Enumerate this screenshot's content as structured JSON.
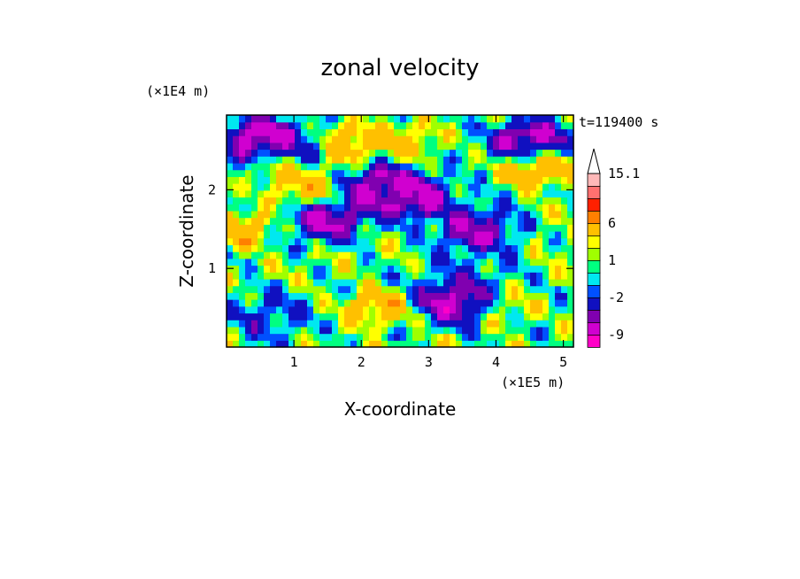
{
  "chart_data": {
    "type": "heatmap",
    "title": "zonal velocity",
    "xlabel": "X-coordinate",
    "ylabel": "Z-coordinate",
    "x_scale_label": "(×1E5 m)",
    "y_scale_label": "(×1E4 m)",
    "time_label": "t=119400 s",
    "xlim": [
      0,
      5.15
    ],
    "ylim": [
      0,
      2.95
    ],
    "x_ticks": [
      1,
      2,
      3,
      4,
      5
    ],
    "x_tick_labels": [
      "1",
      "2",
      "3",
      "4",
      "5"
    ],
    "y_ticks": [
      1,
      2
    ],
    "y_tick_labels": [
      "1",
      "2"
    ],
    "grid": false,
    "colorbar": {
      "position": "right",
      "levels": [
        -12,
        -9,
        -6,
        -4,
        -2,
        -1,
        0,
        1,
        2,
        3,
        6,
        9,
        12,
        15.1
      ],
      "labels": [
        {
          "value": 15.1,
          "text": "15.1"
        },
        {
          "value": 6,
          "text": "6"
        },
        {
          "value": 1,
          "text": "1"
        },
        {
          "value": -2,
          "text": "-2"
        },
        {
          "value": -9,
          "text": "-9"
        }
      ],
      "colors": [
        "#ff00c8",
        "#d000d0",
        "#8000b0",
        "#1010c0",
        "#0050ff",
        "#00e8f0",
        "#00ff80",
        "#a0ff00",
        "#ffff00",
        "#ffc000",
        "#ff8000",
        "#ff2000",
        "#ff7070",
        "#ffb8b8"
      ],
      "extend_max": true
    },
    "features": [
      {
        "x": 0.5,
        "z": 2.65,
        "value": -7
      },
      {
        "x": 0.9,
        "z": 2.3,
        "value": 3
      },
      {
        "x": 1.1,
        "z": 2.55,
        "value": -5
      },
      {
        "x": 1.2,
        "z": 2.0,
        "value": 4
      },
      {
        "x": 1.5,
        "z": 1.65,
        "value": -6
      },
      {
        "x": 1.7,
        "z": 2.6,
        "value": 5
      },
      {
        "x": 2.3,
        "z": 2.05,
        "value": -6
      },
      {
        "x": 2.7,
        "z": 2.65,
        "value": 3
      },
      {
        "x": 2.8,
        "z": 1.9,
        "value": -6
      },
      {
        "x": 3.4,
        "z": 0.6,
        "value": -7
      },
      {
        "x": 3.7,
        "z": 1.5,
        "value": -5
      },
      {
        "x": 4.5,
        "z": 2.6,
        "value": -7
      },
      {
        "x": 4.6,
        "z": 2.3,
        "value": 6
      },
      {
        "x": 0.2,
        "z": 1.5,
        "value": 4
      },
      {
        "x": 2.2,
        "z": 0.5,
        "value": 4
      },
      {
        "x": 4.2,
        "z": 0.5,
        "value": 2
      },
      {
        "x": 3.6,
        "z": 1.0,
        "value": -1
      },
      {
        "x": 0.6,
        "z": 0.4,
        "value": -2
      }
    ]
  }
}
